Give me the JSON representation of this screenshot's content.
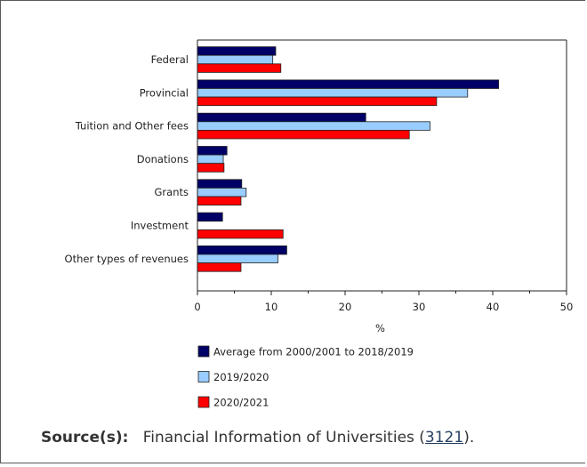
{
  "chart_data": {
    "type": "bar",
    "orientation": "horizontal",
    "categories": [
      "Federal",
      "Provincial",
      "Tuition and Other fees",
      "Donations",
      "Grants",
      "Investment",
      "Other types of revenues"
    ],
    "series": [
      {
        "name": "Average from 2000/2001 to 2018/2019",
        "color": "#000066",
        "values": [
          10.6,
          40.8,
          22.8,
          4.0,
          6.0,
          3.4,
          12.1
        ]
      },
      {
        "name": "2019/2020",
        "color": "#99CCFF",
        "values": [
          10.2,
          36.6,
          31.5,
          3.5,
          6.6,
          0.0,
          10.9
        ]
      },
      {
        "name": "2020/2021",
        "color": "#FF0000",
        "values": [
          11.3,
          32.4,
          28.7,
          3.6,
          5.9,
          11.6,
          5.9
        ]
      }
    ],
    "xlabel": "%",
    "xlim": [
      0,
      50
    ],
    "xticks": [
      0,
      10,
      20,
      30,
      40,
      50
    ],
    "legend_position": "bottom",
    "grid": false
  },
  "source": {
    "label": "Source(s):",
    "text": "Financial Information of Universities (",
    "link": "3121",
    "suffix": ")."
  }
}
